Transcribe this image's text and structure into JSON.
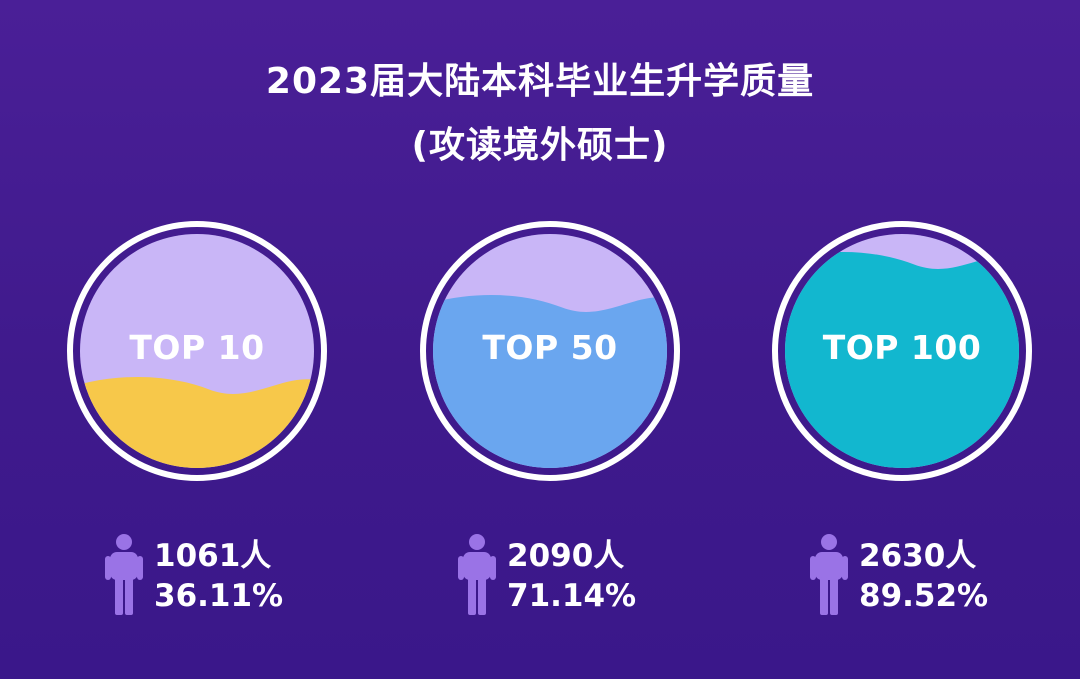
{
  "title": {
    "line1": "2023届大陆本科毕业生升学质量",
    "line2": "(攻读境外硕士)"
  },
  "colors": {
    "background": "#4a1f97",
    "circle_empty": "#c9b6f7",
    "top10_fill": "#f7c84a",
    "top50_fill": "#6aa6ef",
    "top100_fill": "#12b7cf",
    "icon": "#9a73e6"
  },
  "chart_data": {
    "type": "liquid-fill",
    "title": "2023届大陆本科毕业生升学质量 (攻读境外硕士)",
    "items": [
      {
        "label": "TOP 10",
        "count": "1061人",
        "percent_text": "36.11%",
        "value": 36.11
      },
      {
        "label": "TOP 50",
        "count": "2090人",
        "percent_text": "71.14%",
        "value": 71.14
      },
      {
        "label": "TOP 100",
        "count": "2630人",
        "percent_text": "89.52%",
        "value": 89.52
      }
    ]
  }
}
